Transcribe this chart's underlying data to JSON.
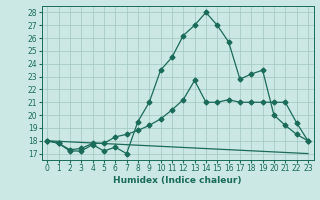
{
  "xlabel": "Humidex (Indice chaleur)",
  "bg_color": "#cce8e4",
  "grid_color": "#a0c8c0",
  "line_color": "#1a6b5a",
  "xlim": [
    -0.5,
    23.5
  ],
  "ylim": [
    16.5,
    28.5
  ],
  "yticks": [
    17,
    18,
    19,
    20,
    21,
    22,
    23,
    24,
    25,
    26,
    27,
    28
  ],
  "xticks": [
    0,
    1,
    2,
    3,
    4,
    5,
    6,
    7,
    8,
    9,
    10,
    11,
    12,
    13,
    14,
    15,
    16,
    17,
    18,
    19,
    20,
    21,
    22,
    23
  ],
  "line1_x": [
    0,
    1,
    2,
    3,
    4,
    5,
    6,
    7,
    8,
    9,
    10,
    11,
    12,
    13,
    14,
    15,
    16,
    17,
    18,
    19,
    20,
    21,
    22,
    23
  ],
  "line1_y": [
    18.0,
    17.8,
    17.2,
    17.2,
    17.7,
    17.2,
    17.5,
    17.0,
    19.5,
    21.0,
    23.5,
    24.5,
    26.2,
    27.0,
    28.0,
    27.0,
    25.7,
    22.8,
    23.2,
    23.5,
    20.0,
    19.2,
    18.5,
    18.0
  ],
  "line2_x": [
    0,
    1,
    2,
    3,
    4,
    5,
    6,
    7,
    8,
    9,
    10,
    11,
    12,
    13,
    14,
    15,
    16,
    17,
    18,
    19,
    20,
    21,
    22,
    23
  ],
  "line2_y": [
    18.0,
    17.8,
    17.3,
    17.4,
    17.8,
    17.8,
    18.3,
    18.5,
    18.8,
    19.2,
    19.7,
    20.4,
    21.2,
    22.7,
    21.0,
    21.0,
    21.2,
    21.0,
    21.0,
    21.0,
    21.0,
    21.0,
    19.4,
    18.0
  ],
  "line3_x": [
    0,
    23
  ],
  "line3_y": [
    18.0,
    17.0
  ]
}
